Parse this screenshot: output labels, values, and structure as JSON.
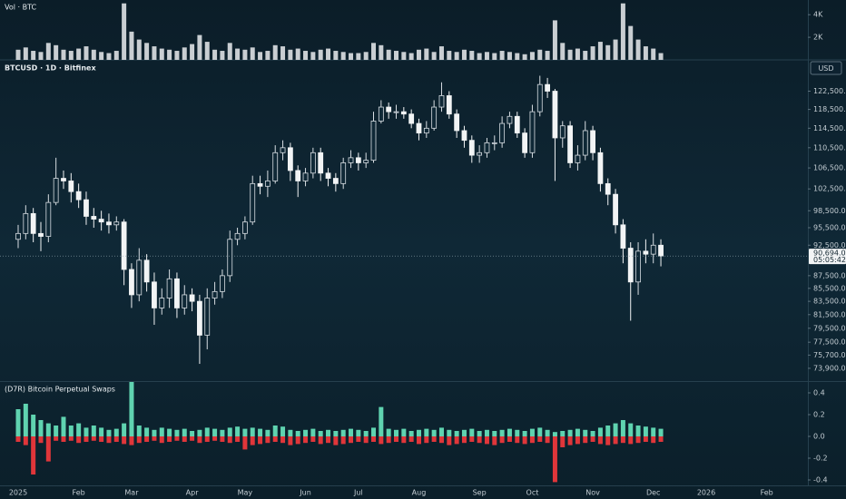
{
  "chart_data": [
    {
      "type": "bar",
      "title": "Vol · BTC",
      "color": "#c9ced2",
      "values": [
        900,
        1100,
        800,
        700,
        1500,
        1300,
        900,
        800,
        1000,
        1200,
        900,
        700,
        600,
        800,
        5000,
        2500,
        1800,
        1500,
        1200,
        1000,
        900,
        800,
        1100,
        1400,
        2200,
        1600,
        900,
        800,
        1500,
        1000,
        900,
        1100,
        700,
        800,
        1300,
        1200,
        900,
        1000,
        800,
        700,
        900,
        1000,
        800,
        700,
        600,
        600,
        700,
        1500,
        1300,
        900,
        800,
        700,
        600,
        900,
        1000,
        700,
        1200,
        800,
        700,
        900,
        800,
        600,
        700,
        600,
        800,
        700,
        600,
        500,
        700,
        900,
        800,
        3500,
        1500,
        900,
        1000,
        800,
        1200,
        1600,
        1300,
        1800,
        5000,
        3000,
        1800,
        1200,
        1000,
        600,
        null,
        null,
        null,
        null,
        null,
        null,
        null,
        null,
        null,
        null,
        null,
        null,
        null,
        null
      ],
      "ylim": [
        0,
        5300
      ],
      "yticks": [
        {
          "value": 2000,
          "label": "2K"
        },
        {
          "value": 4000,
          "label": "4K"
        }
      ]
    },
    {
      "type": "candlestick",
      "title": "BTCUSD · 1D · Bitfinex",
      "currency": "USD",
      "log": true,
      "up_color": "#d7dde2",
      "down_color": "#f2f4f5",
      "categories": [
        "2025",
        null,
        null,
        null,
        null,
        null,
        null,
        null,
        "Feb",
        null,
        null,
        null,
        null,
        null,
        null,
        "Mar",
        null,
        null,
        null,
        null,
        null,
        null,
        null,
        "Apr",
        null,
        null,
        null,
        null,
        null,
        null,
        "May",
        null,
        null,
        null,
        null,
        null,
        null,
        null,
        "Jun",
        null,
        null,
        null,
        null,
        null,
        null,
        "Jul",
        null,
        null,
        null,
        null,
        null,
        null,
        null,
        "Aug",
        null,
        null,
        null,
        null,
        null,
        null,
        null,
        "Sep",
        null,
        null,
        null,
        null,
        null,
        null,
        "Oct",
        null,
        null,
        null,
        null,
        null,
        null,
        null,
        "Nov",
        null,
        null,
        null,
        null,
        null,
        null,
        null,
        "Dec",
        null,
        null,
        null,
        null,
        null,
        null,
        "2026",
        null,
        null,
        null,
        null,
        null,
        null,
        null,
        "Feb"
      ],
      "open": [
        93500,
        94500,
        98000,
        94500,
        94000,
        100000,
        104500,
        104000,
        102000,
        100500,
        97500,
        97000,
        96500,
        96000,
        96500,
        88500,
        84500,
        90000,
        86500,
        82500,
        84000,
        87000,
        82500,
        84500,
        83500,
        78500,
        84000,
        85000,
        87500,
        93500,
        94500,
        96500,
        103500,
        103000,
        104000,
        109500,
        110500,
        106000,
        104000,
        105500,
        109500,
        105500,
        104500,
        103500,
        107500,
        108500,
        107500,
        108000,
        116000,
        119000,
        118000,
        118000,
        117500,
        115500,
        113500,
        114500,
        119000,
        121500,
        117500,
        114000,
        112000,
        109000,
        109500,
        111500,
        111500,
        115500,
        117000,
        113500,
        109500,
        118000,
        124000,
        122500,
        112500,
        115000,
        107500,
        109000,
        114000,
        109500,
        103500,
        101500,
        96000,
        92000,
        86500,
        91500,
        91000,
        92500,
        null,
        null,
        null,
        null,
        null,
        null,
        null,
        null,
        null,
        null,
        null,
        null,
        null,
        null
      ],
      "high": [
        96000,
        99500,
        99000,
        96500,
        101500,
        108500,
        106000,
        105500,
        103500,
        102000,
        99000,
        98500,
        98000,
        97500,
        97000,
        89500,
        92000,
        91000,
        88000,
        85500,
        88500,
        88000,
        86000,
        85500,
        84500,
        85500,
        86500,
        88500,
        95000,
        95500,
        97500,
        105000,
        105000,
        106000,
        111000,
        112000,
        111500,
        107000,
        106500,
        110500,
        110500,
        106500,
        105500,
        108500,
        110000,
        109500,
        109500,
        118000,
        120500,
        120000,
        119500,
        119000,
        118500,
        116500,
        116000,
        120500,
        124500,
        122500,
        118500,
        115000,
        113000,
        111000,
        112500,
        113000,
        117000,
        118000,
        118000,
        114500,
        119500,
        126000,
        125500,
        123000,
        116000,
        116000,
        111000,
        116000,
        115000,
        110500,
        104500,
        102500,
        97000,
        93000,
        93000,
        93500,
        94500,
        93500,
        null,
        null,
        null,
        null,
        null,
        null,
        null,
        null,
        null,
        null,
        null,
        null,
        null,
        null
      ],
      "low": [
        92000,
        93500,
        93000,
        91500,
        93000,
        99500,
        102500,
        100000,
        99000,
        96000,
        95500,
        95000,
        94500,
        95000,
        86000,
        82500,
        83500,
        85000,
        80000,
        81500,
        82500,
        81000,
        81500,
        82000,
        74500,
        76500,
        83000,
        84000,
        86500,
        92500,
        93500,
        96000,
        101500,
        101000,
        103500,
        108000,
        104000,
        101000,
        103000,
        104500,
        104000,
        103000,
        102000,
        102500,
        106500,
        106000,
        106500,
        107500,
        115500,
        116500,
        116500,
        116500,
        114500,
        112000,
        112500,
        114000,
        118000,
        116500,
        112500,
        110500,
        107500,
        107500,
        108500,
        110000,
        110500,
        114500,
        112500,
        108500,
        108500,
        117000,
        121000,
        104000,
        110500,
        106500,
        106000,
        108000,
        108000,
        102000,
        99500,
        94500,
        89500,
        80600,
        84500,
        89500,
        89500,
        89000,
        null,
        null,
        null,
        null,
        null,
        null,
        null,
        null,
        null,
        null,
        null,
        null,
        null,
        null
      ],
      "close": [
        94500,
        98000,
        94500,
        94000,
        100000,
        104500,
        104000,
        102000,
        100500,
        97500,
        97000,
        96500,
        96000,
        96500,
        88500,
        84500,
        90000,
        86500,
        82500,
        84000,
        87000,
        82500,
        84500,
        83500,
        78500,
        84000,
        85000,
        87500,
        93500,
        94500,
        96500,
        103500,
        103000,
        104000,
        109500,
        110500,
        106000,
        104000,
        105500,
        109500,
        105500,
        104500,
        103500,
        107500,
        108500,
        107500,
        108000,
        116000,
        119000,
        118000,
        118000,
        117500,
        115500,
        113500,
        114500,
        119000,
        121500,
        117500,
        114000,
        112000,
        109000,
        109500,
        111500,
        111500,
        115500,
        117000,
        113500,
        109500,
        118000,
        124000,
        122500,
        112500,
        115000,
        107500,
        109000,
        114000,
        109500,
        103500,
        101500,
        96000,
        92000,
        86500,
        91500,
        91000,
        92500,
        90694,
        null,
        null,
        null,
        null,
        null,
        null,
        null,
        null,
        null,
        null,
        null,
        null,
        null,
        null
      ],
      "last_price": {
        "value": 90694,
        "label": "90,694.0"
      },
      "countdown": "05:05:42",
      "ylim": [
        72200,
        129700
      ],
      "yticks": [
        {
          "value": 73900,
          "label": "73,900.0"
        },
        {
          "value": 75700,
          "label": "75,700.0"
        },
        {
          "value": 77500,
          "label": "77,500.0"
        },
        {
          "value": 79500,
          "label": "79,500.0"
        },
        {
          "value": 81500,
          "label": "81,500.0"
        },
        {
          "value": 83500,
          "label": "83,500.0"
        },
        {
          "value": 85500,
          "label": "85,500.0"
        },
        {
          "value": 87500,
          "label": "87,500.0"
        },
        {
          "value": 92500,
          "label": "92,500.0"
        },
        {
          "value": 95500,
          "label": "95,500.0"
        },
        {
          "value": 98500,
          "label": "98,500.0"
        },
        {
          "value": 102500,
          "label": "102,500.0"
        },
        {
          "value": 106500,
          "label": "106,500.0"
        },
        {
          "value": 110500,
          "label": "110,500.0"
        },
        {
          "value": 114500,
          "label": "114,500.0"
        },
        {
          "value": 118500,
          "label": "118,500.0"
        },
        {
          "value": 122500,
          "label": "122,500.0"
        }
      ]
    },
    {
      "type": "bar",
      "title": "(D7R) Bitcoin Perpetual Swaps",
      "series": [
        {
          "color": "#5fd3b0",
          "values": [
            0.25,
            0.3,
            0.2,
            0.15,
            0.12,
            0.1,
            0.18,
            0.1,
            0.12,
            0.08,
            0.1,
            0.08,
            0.06,
            0.07,
            0.12,
            0.5,
            0.1,
            0.08,
            0.06,
            0.08,
            0.07,
            0.06,
            0.07,
            0.05,
            0.06,
            0.08,
            0.07,
            0.06,
            0.08,
            0.09,
            0.07,
            0.08,
            0.07,
            0.06,
            0.1,
            0.09,
            0.06,
            0.05,
            0.06,
            0.07,
            0.05,
            0.06,
            0.05,
            0.06,
            0.07,
            0.06,
            0.05,
            0.08,
            0.27,
            0.07,
            0.06,
            0.07,
            0.05,
            0.06,
            0.07,
            0.06,
            0.08,
            0.06,
            0.05,
            0.06,
            0.07,
            0.05,
            0.06,
            0.05,
            0.06,
            0.07,
            0.06,
            0.05,
            0.07,
            0.08,
            0.06,
            0.04,
            0.05,
            0.06,
            0.07,
            0.06,
            0.05,
            0.08,
            0.1,
            0.12,
            0.15,
            0.12,
            0.1,
            0.09,
            0.08,
            0.07,
            null,
            null,
            null,
            null,
            null,
            null,
            null,
            null,
            null,
            null,
            null,
            null,
            null,
            null
          ]
        },
        {
          "color": "#e0363a",
          "values": [
            -0.05,
            -0.08,
            -0.35,
            -0.06,
            -0.23,
            -0.04,
            -0.05,
            -0.04,
            -0.06,
            -0.05,
            -0.04,
            -0.05,
            -0.06,
            -0.05,
            -0.07,
            -0.08,
            -0.06,
            -0.05,
            -0.04,
            -0.06,
            -0.05,
            -0.04,
            -0.05,
            -0.04,
            -0.06,
            -0.05,
            -0.04,
            -0.05,
            -0.06,
            -0.05,
            -0.12,
            -0.08,
            -0.07,
            -0.06,
            -0.05,
            -0.06,
            -0.08,
            -0.07,
            -0.06,
            -0.05,
            -0.07,
            -0.06,
            -0.08,
            -0.07,
            -0.06,
            -0.05,
            -0.06,
            -0.05,
            -0.07,
            -0.06,
            -0.05,
            -0.06,
            -0.05,
            -0.07,
            -0.06,
            -0.05,
            -0.06,
            -0.08,
            -0.07,
            -0.06,
            -0.05,
            -0.06,
            -0.07,
            -0.08,
            -0.06,
            -0.05,
            -0.06,
            -0.07,
            -0.06,
            -0.05,
            -0.06,
            -0.42,
            -0.1,
            -0.08,
            -0.07,
            -0.06,
            -0.05,
            -0.07,
            -0.08,
            -0.07,
            -0.06,
            -0.07,
            -0.06,
            -0.05,
            -0.06,
            -0.05,
            null,
            null,
            null,
            null,
            null,
            null,
            null,
            null,
            null,
            null,
            null,
            null,
            null,
            null
          ]
        }
      ],
      "ylim": [
        -0.45,
        0.5
      ],
      "yticks": [
        -0.4,
        -0.2,
        {
          "value": 0,
          "label": "0.0"
        },
        0.2,
        0.4
      ]
    }
  ]
}
